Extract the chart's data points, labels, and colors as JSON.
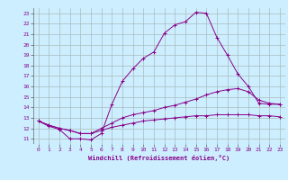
{
  "xlabel": "Windchill (Refroidissement éolien,°C)",
  "xlim": [
    -0.5,
    23.5
  ],
  "ylim": [
    10.5,
    23.5
  ],
  "yticks": [
    11,
    12,
    13,
    14,
    15,
    16,
    17,
    18,
    19,
    20,
    21,
    22,
    23
  ],
  "xticks": [
    0,
    1,
    2,
    3,
    4,
    5,
    6,
    7,
    8,
    9,
    10,
    11,
    12,
    13,
    14,
    15,
    16,
    17,
    18,
    19,
    20,
    21,
    22,
    23
  ],
  "bg_color": "#cceeff",
  "grid_color": "#aabbbb",
  "line_color": "#880088",
  "line1_x": [
    0,
    1,
    2,
    3,
    4,
    5,
    6,
    7,
    8,
    9,
    10,
    11,
    12,
    13,
    14,
    15,
    16,
    17,
    18,
    19,
    20,
    21,
    22,
    23
  ],
  "line1_y": [
    12.7,
    12.2,
    11.9,
    11.0,
    11.0,
    10.9,
    11.5,
    14.3,
    16.5,
    17.7,
    18.7,
    19.3,
    21.1,
    21.9,
    22.2,
    23.1,
    23.0,
    20.7,
    19.0,
    17.2,
    16.0,
    14.4,
    14.3,
    14.3
  ],
  "line2_x": [
    0,
    1,
    2,
    3,
    4,
    5,
    6,
    7,
    8,
    9,
    10,
    11,
    12,
    13,
    14,
    15,
    16,
    17,
    18,
    19,
    20,
    21,
    22,
    23
  ],
  "line2_y": [
    12.7,
    12.3,
    12.0,
    11.8,
    11.5,
    11.5,
    12.0,
    12.5,
    13.0,
    13.3,
    13.5,
    13.7,
    14.0,
    14.2,
    14.5,
    14.8,
    15.2,
    15.5,
    15.7,
    15.8,
    15.5,
    14.7,
    14.4,
    14.3
  ],
  "line3_x": [
    0,
    1,
    2,
    3,
    4,
    5,
    6,
    7,
    8,
    9,
    10,
    11,
    12,
    13,
    14,
    15,
    16,
    17,
    18,
    19,
    20,
    21,
    22,
    23
  ],
  "line3_y": [
    12.7,
    12.3,
    12.0,
    11.8,
    11.5,
    11.5,
    11.8,
    12.1,
    12.3,
    12.5,
    12.7,
    12.8,
    12.9,
    13.0,
    13.1,
    13.2,
    13.2,
    13.3,
    13.3,
    13.3,
    13.3,
    13.2,
    13.2,
    13.1
  ]
}
